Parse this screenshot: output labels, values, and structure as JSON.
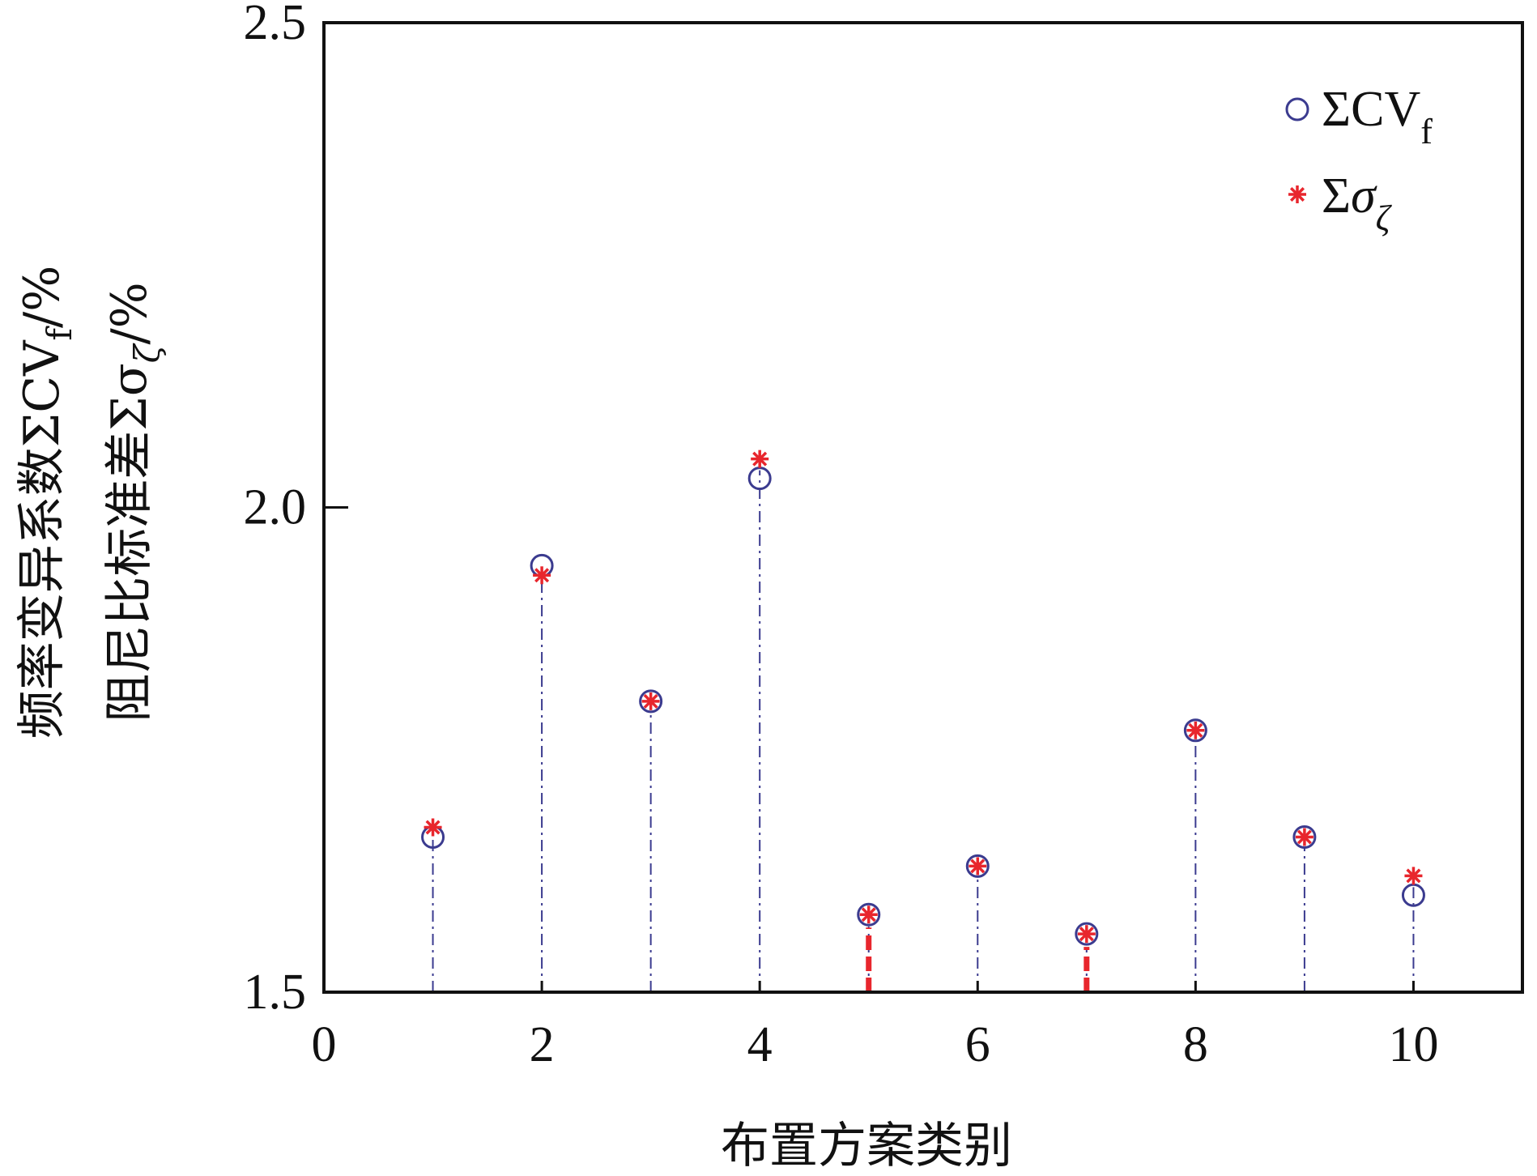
{
  "chart_data": {
    "type": "scatter",
    "title": "",
    "xlabel": "布置方案类别",
    "ylabel_line1": "频率变异系数ΣCV",
    "ylabel_line1_sub": "f",
    "ylabel_line1_suffix": "/%",
    "ylabel_line2": "阻尼比标准差Σσ",
    "ylabel_line2_sub": "ζ",
    "ylabel_line2_suffix": "/%",
    "xlim": [
      0,
      11
    ],
    "ylim": [
      1.5,
      2.5
    ],
    "xticks": [
      0,
      2,
      4,
      6,
      8,
      10
    ],
    "xtick_labels": [
      "0",
      "2",
      "4",
      "6",
      "8",
      "10"
    ],
    "yticks": [
      1.5,
      2.0,
      2.5
    ],
    "ytick_labels": [
      "1.5",
      "2.0",
      "2.5"
    ],
    "x": [
      1,
      2,
      3,
      4,
      5,
      6,
      7,
      8,
      9,
      10
    ],
    "series": [
      {
        "name": "ΣCV",
        "name_sub": "f",
        "marker": "circle",
        "color": "#3b3b8f",
        "stem_style": "dashdot",
        "values": [
          1.66,
          1.94,
          1.8,
          2.03,
          1.58,
          1.63,
          1.56,
          1.77,
          1.66,
          1.6
        ]
      },
      {
        "name": "Σσ",
        "name_sub": "ζ",
        "marker": "asterisk",
        "color": "#e8262d",
        "stem_style": "dashed",
        "values": [
          1.67,
          1.93,
          1.8,
          2.05,
          1.58,
          1.63,
          1.56,
          1.77,
          1.66,
          1.62
        ]
      }
    ],
    "legend_position": "top-right",
    "grid": false
  }
}
